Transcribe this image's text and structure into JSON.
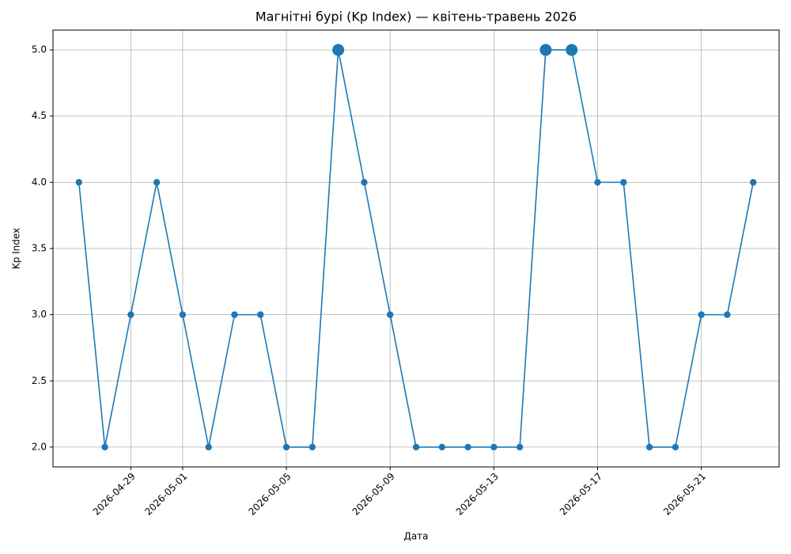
{
  "chart_data": {
    "type": "line",
    "title": "Магнітні бурі (Kp Index) — квітень-травень 2026",
    "x_label": "Дата",
    "y_label": "Kp Index",
    "x": [
      "2026-04-27",
      "2026-04-28",
      "2026-04-29",
      "2026-04-30",
      "2026-05-01",
      "2026-05-02",
      "2026-05-03",
      "2026-05-04",
      "2026-05-05",
      "2026-05-06",
      "2026-05-07",
      "2026-05-08",
      "2026-05-09",
      "2026-05-10",
      "2026-05-11",
      "2026-05-12",
      "2026-05-13",
      "2026-05-14",
      "2026-05-15",
      "2026-05-16",
      "2026-05-17",
      "2026-05-18",
      "2026-05-19",
      "2026-05-20",
      "2026-05-21",
      "2026-05-22",
      "2026-05-23"
    ],
    "values": [
      4,
      2,
      3,
      4,
      3,
      2,
      3,
      3,
      2,
      2,
      5,
      4,
      3,
      2,
      2,
      2,
      2,
      2,
      5,
      5,
      4,
      4,
      2,
      2,
      3,
      3,
      4
    ],
    "color": "#1f77b4",
    "xlim": [
      "2026-04-26",
      "2026-05-24"
    ],
    "xticks": [
      "2026-04-29",
      "2026-05-01",
      "2026-05-05",
      "2026-05-09",
      "2026-05-13",
      "2026-05-17",
      "2026-05-21"
    ],
    "ylim": [
      1.85,
      5.15
    ],
    "yticks": [
      {
        "value": 2,
        "label": "2.0"
      },
      {
        "value": 2.5,
        "label": "2.5"
      },
      {
        "value": 3,
        "label": "3.0"
      },
      {
        "value": 3.5,
        "label": "3.5"
      },
      {
        "value": 4,
        "label": "4.0"
      },
      {
        "value": 4.5,
        "label": "4.5"
      },
      {
        "value": 5,
        "label": "5.0"
      }
    ],
    "grid": true
  }
}
